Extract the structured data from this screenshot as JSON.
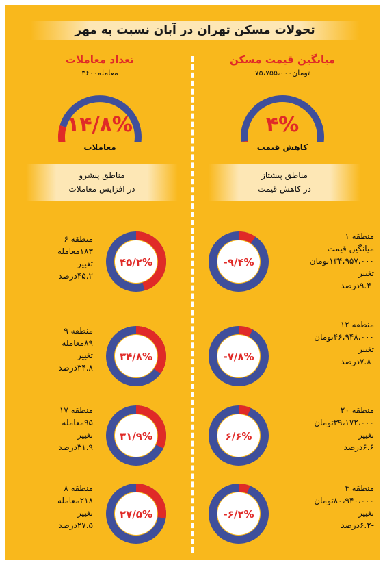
{
  "title": "تحولات مسکن تهران در آبان نسبت به مهر",
  "colors": {
    "background": "#f9b81c",
    "red": "#e02a27",
    "blue": "#3f4f9b",
    "cream": "#fde7b5"
  },
  "right_header": {
    "title": "میانگین قیمت مسکن",
    "value": "۷۵،۷۵۵،۰۰۰تومان",
    "gauge_value": "۴%",
    "gauge_fraction": 0.04,
    "gauge_label": "کاهش قیمت"
  },
  "left_header": {
    "title": "تعداد معاملات",
    "value": "۳۶۰۰معامله",
    "gauge_value": "۱۴/۸%",
    "gauge_fraction": 0.148,
    "gauge_label": "معاملات"
  },
  "right_band": {
    "line1": "مناطق پیشتاز",
    "line2": "در کاهش قیمت"
  },
  "left_band": {
    "line1": "مناطق پیشرو",
    "line2": "در افزایش معاملات"
  },
  "right_items": [
    {
      "donut_label": "-۹/۴%",
      "fraction": 0.094,
      "lines": [
        "منطقه ۱",
        "میانگین قیمت",
        "۱۳۴،۹۵۷،۰۰۰تومان",
        "تغییر",
        "-۹.۴درصد"
      ]
    },
    {
      "donut_label": "-۷/۸%",
      "fraction": 0.078,
      "lines": [
        "منطقه ۱۲",
        "۴۶،۹۴۸،۰۰۰تومان",
        "تغییر",
        "-۷.۸درصد"
      ]
    },
    {
      "donut_label": "۶/۶%",
      "fraction": 0.066,
      "lines": [
        "منطقه ۲۰",
        "۳۹،۱۷۲،۰۰۰تومان",
        "تغییر",
        "۶.۶درصد"
      ]
    },
    {
      "donut_label": "-۶/۲%",
      "fraction": 0.062,
      "lines": [
        "منطقه ۴",
        "۸۰،۹۴۰،۰۰۰تومان",
        "تغییر",
        "-۶.۲درصد"
      ]
    }
  ],
  "left_items": [
    {
      "donut_label": "۴۵/۲%",
      "fraction": 0.452,
      "lines": [
        "منطقه ۶",
        "۱۸۳معامله",
        "تغییر",
        "۴۵.۲درصد"
      ]
    },
    {
      "donut_label": "۳۴/۸%",
      "fraction": 0.348,
      "lines": [
        "منطقه ۹",
        "۸۹معامله",
        "تغییر",
        "۳۴.۸درصد"
      ]
    },
    {
      "donut_label": "۳۱/۹%",
      "fraction": 0.319,
      "lines": [
        "منطقه ۱۷",
        "۹۵معامله",
        "تغییر",
        "۳۱.۹درصد"
      ]
    },
    {
      "donut_label": "۲۷/۵%",
      "fraction": 0.275,
      "lines": [
        "منطقه ۸",
        "۲۱۸معامله",
        "تغییر",
        "۲۷.۵درصد"
      ]
    }
  ]
}
